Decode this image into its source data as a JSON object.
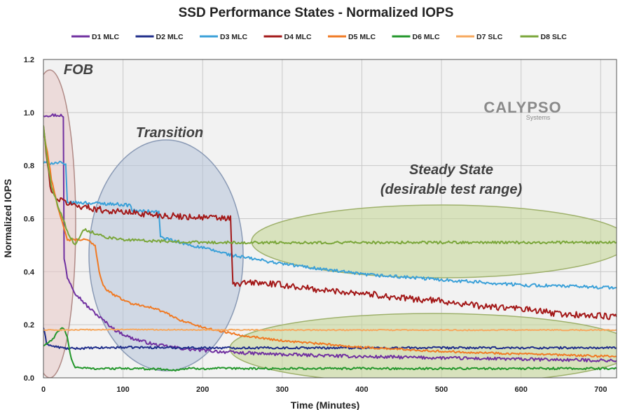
{
  "chart_data": {
    "type": "line",
    "title": "SSD Performance States - Normalized IOPS",
    "xlabel": "Time (Minutes)",
    "ylabel": "Normalized IOPS",
    "xlim": [
      0,
      720
    ],
    "ylim": [
      0,
      1.2
    ],
    "x_ticks": [
      "0",
      "100",
      "200",
      "300",
      "400",
      "500",
      "600",
      "700"
    ],
    "y_ticks": [
      "0.0",
      "0.2",
      "0.4",
      "0.6",
      "0.8",
      "1.0",
      "1.2"
    ],
    "grid": true,
    "legend_position": "top",
    "series": [
      {
        "name": "D1 MLC",
        "color": "#7030a0",
        "noise": 0.006,
        "points": [
          [
            0,
            0.99
          ],
          [
            22,
            0.99
          ],
          [
            25,
            0.98
          ],
          [
            26,
            0.45
          ],
          [
            30,
            0.38
          ],
          [
            40,
            0.32
          ],
          [
            55,
            0.27
          ],
          [
            70,
            0.23
          ],
          [
            90,
            0.18
          ],
          [
            110,
            0.15
          ],
          [
            140,
            0.125
          ],
          [
            180,
            0.108
          ],
          [
            240,
            0.095
          ],
          [
            300,
            0.088
          ],
          [
            400,
            0.08
          ],
          [
            500,
            0.075
          ],
          [
            600,
            0.07
          ],
          [
            720,
            0.065
          ]
        ]
      },
      {
        "name": "D2 MLC",
        "color": "#1f2d8a",
        "noise": 0.004,
        "points": [
          [
            0,
            0.19
          ],
          [
            4,
            0.13
          ],
          [
            10,
            0.12
          ],
          [
            20,
            0.115
          ],
          [
            30,
            0.11
          ],
          [
            100,
            0.115
          ],
          [
            200,
            0.113
          ],
          [
            300,
            0.113
          ],
          [
            500,
            0.113
          ],
          [
            720,
            0.113
          ]
        ]
      },
      {
        "name": "D3 MLC",
        "color": "#3aa0d8",
        "noise": 0.006,
        "points": [
          [
            0,
            0.81
          ],
          [
            22,
            0.81
          ],
          [
            28,
            0.8
          ],
          [
            30,
            0.66
          ],
          [
            50,
            0.66
          ],
          [
            90,
            0.655
          ],
          [
            110,
            0.65
          ],
          [
            111,
            0.63
          ],
          [
            145,
            0.625
          ],
          [
            147,
            0.53
          ],
          [
            170,
            0.51
          ],
          [
            200,
            0.49
          ],
          [
            240,
            0.46
          ],
          [
            300,
            0.43
          ],
          [
            400,
            0.39
          ],
          [
            500,
            0.37
          ],
          [
            600,
            0.35
          ],
          [
            720,
            0.34
          ]
        ]
      },
      {
        "name": "D4 MLC",
        "color": "#a31818",
        "noise": 0.012,
        "points": [
          [
            0,
            0.95
          ],
          [
            5,
            0.8
          ],
          [
            10,
            0.7
          ],
          [
            20,
            0.67
          ],
          [
            40,
            0.65
          ],
          [
            80,
            0.63
          ],
          [
            120,
            0.62
          ],
          [
            160,
            0.61
          ],
          [
            200,
            0.605
          ],
          [
            235,
            0.6
          ],
          [
            238,
            0.35
          ],
          [
            260,
            0.36
          ],
          [
            300,
            0.35
          ],
          [
            350,
            0.33
          ],
          [
            400,
            0.32
          ],
          [
            450,
            0.3
          ],
          [
            500,
            0.29
          ],
          [
            550,
            0.27
          ],
          [
            600,
            0.26
          ],
          [
            650,
            0.24
          ],
          [
            720,
            0.23
          ]
        ]
      },
      {
        "name": "D5 MLC",
        "color": "#f07a24",
        "noise": 0.004,
        "points": [
          [
            0,
            0.93
          ],
          [
            5,
            0.85
          ],
          [
            10,
            0.75
          ],
          [
            20,
            0.62
          ],
          [
            28,
            0.54
          ],
          [
            30,
            0.52
          ],
          [
            55,
            0.52
          ],
          [
            65,
            0.5
          ],
          [
            70,
            0.4
          ],
          [
            75,
            0.35
          ],
          [
            80,
            0.33
          ],
          [
            90,
            0.31
          ],
          [
            110,
            0.28
          ],
          [
            130,
            0.27
          ],
          [
            150,
            0.25
          ],
          [
            170,
            0.22
          ],
          [
            200,
            0.19
          ],
          [
            250,
            0.16
          ],
          [
            300,
            0.14
          ],
          [
            400,
            0.115
          ],
          [
            500,
            0.1
          ],
          [
            600,
            0.09
          ],
          [
            720,
            0.08
          ]
        ]
      },
      {
        "name": "D6 MLC",
        "color": "#22962a",
        "noise": 0.004,
        "points": [
          [
            0,
            0.12
          ],
          [
            5,
            0.13
          ],
          [
            10,
            0.14
          ],
          [
            15,
            0.16
          ],
          [
            20,
            0.18
          ],
          [
            25,
            0.19
          ],
          [
            30,
            0.15
          ],
          [
            35,
            0.07
          ],
          [
            40,
            0.04
          ],
          [
            60,
            0.035
          ],
          [
            100,
            0.035
          ],
          [
            150,
            0.033
          ],
          [
            160,
            0.028
          ],
          [
            180,
            0.035
          ],
          [
            720,
            0.035
          ]
        ]
      },
      {
        "name": "D7 SLC",
        "color": "#f7a85e",
        "noise": 0.002,
        "points": [
          [
            0,
            0.18
          ],
          [
            15,
            0.18
          ],
          [
            100,
            0.182
          ],
          [
            300,
            0.18
          ],
          [
            500,
            0.18
          ],
          [
            720,
            0.18
          ]
        ]
      },
      {
        "name": "D8 SLC",
        "color": "#7aa63a",
        "noise": 0.005,
        "points": [
          [
            0,
            0.95
          ],
          [
            5,
            0.82
          ],
          [
            10,
            0.72
          ],
          [
            18,
            0.65
          ],
          [
            25,
            0.6
          ],
          [
            30,
            0.55
          ],
          [
            40,
            0.5
          ],
          [
            45,
            0.53
          ],
          [
            50,
            0.56
          ],
          [
            60,
            0.55
          ],
          [
            80,
            0.53
          ],
          [
            100,
            0.52
          ],
          [
            150,
            0.515
          ],
          [
            200,
            0.51
          ],
          [
            300,
            0.51
          ],
          [
            500,
            0.51
          ],
          [
            720,
            0.51
          ]
        ]
      }
    ],
    "annotations": [
      {
        "text": "FOB"
      },
      {
        "text": "Transition"
      },
      {
        "text": "Steady State"
      },
      {
        "text": "(desirable test range)"
      }
    ]
  },
  "logo": {
    "text": "CALYPSO",
    "subtext": "Systems"
  }
}
